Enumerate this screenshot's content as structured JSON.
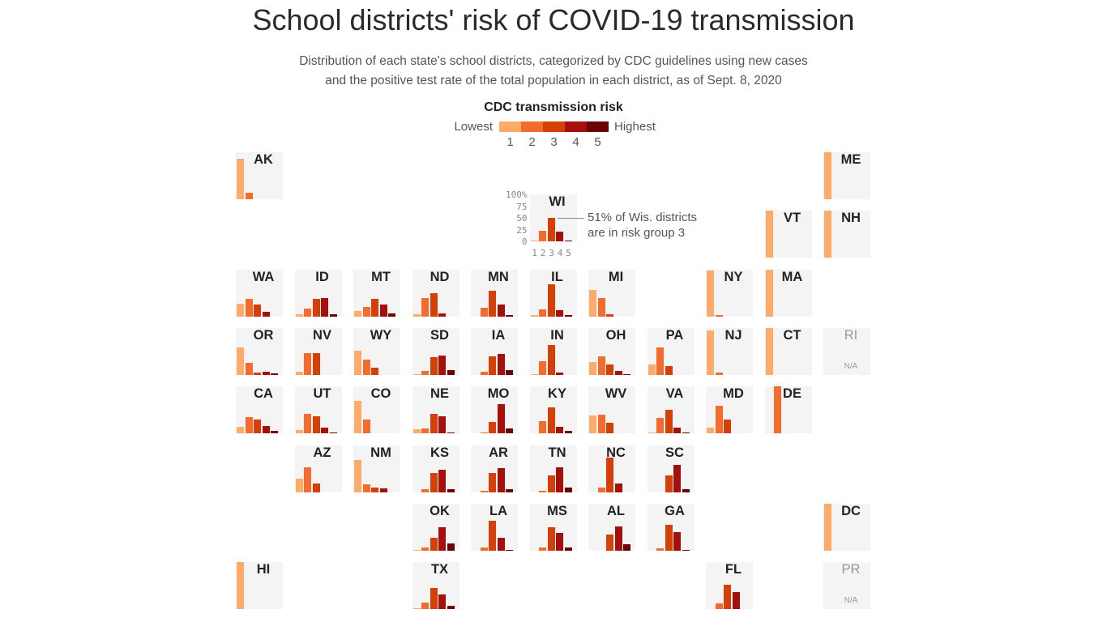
{
  "title": "School districts' risk of COVID-19 transmission",
  "subtitle_line1": "Distribution of each state's school districts, categorized by CDC guidelines using new cases",
  "subtitle_line2": "and the positive test rate of the total population in each district, as of Sept. 8, 2020",
  "legend": {
    "title": "CDC transmission risk",
    "low_label": "Lowest",
    "high_label": "Highest",
    "levels": [
      "1",
      "2",
      "3",
      "4",
      "5"
    ],
    "colors": [
      "#fdaa6a",
      "#f36c2e",
      "#d54008",
      "#a50f0c",
      "#6b0505"
    ]
  },
  "annotation": {
    "line1": "51% of Wis. districts",
    "line2": "are in risk group 3"
  },
  "na_label": "N/A",
  "chart_data": {
    "type": "bar",
    "layout": "tile-grid small multiples",
    "categories": [
      "1",
      "2",
      "3",
      "4",
      "5"
    ],
    "ylim": [
      0,
      100
    ],
    "y_ticks": [
      "100%",
      "75",
      "50",
      "25",
      "0"
    ],
    "unit": "percent of districts",
    "states": [
      {
        "state": "AK",
        "values": [
          86,
          14,
          0,
          0,
          0
        ]
      },
      {
        "state": "ME",
        "values": [
          100,
          0,
          0,
          0,
          0
        ]
      },
      {
        "state": "WI",
        "values": [
          3,
          23,
          51,
          21,
          2
        ]
      },
      {
        "state": "VT",
        "values": [
          100,
          0,
          0,
          0,
          0
        ]
      },
      {
        "state": "NH",
        "values": [
          100,
          0,
          0,
          0,
          0
        ]
      },
      {
        "state": "WA",
        "values": [
          27,
          38,
          26,
          9,
          0
        ]
      },
      {
        "state": "ID",
        "values": [
          4,
          16,
          37,
          39,
          4
        ]
      },
      {
        "state": "MT",
        "values": [
          11,
          20,
          37,
          25,
          7
        ]
      },
      {
        "state": "ND",
        "values": [
          4,
          39,
          50,
          7,
          0
        ]
      },
      {
        "state": "MN",
        "values": [
          0,
          18,
          55,
          25,
          2
        ]
      },
      {
        "state": "IL",
        "values": [
          2,
          14,
          69,
          13,
          2
        ]
      },
      {
        "state": "MI",
        "values": [
          57,
          39,
          4,
          0,
          0
        ]
      },
      {
        "state": "NY",
        "values": [
          98,
          2,
          0,
          0,
          0
        ]
      },
      {
        "state": "MA",
        "values": [
          100,
          0,
          0,
          0,
          0
        ]
      },
      {
        "state": "OR",
        "values": [
          59,
          26,
          5,
          6,
          4
        ]
      },
      {
        "state": "NV",
        "values": [
          6,
          47,
          47,
          0,
          0
        ]
      },
      {
        "state": "WY",
        "values": [
          51,
          33,
          16,
          0,
          0
        ]
      },
      {
        "state": "SD",
        "values": [
          2,
          9,
          37,
          42,
          10
        ]
      },
      {
        "state": "IA",
        "values": [
          0,
          6,
          39,
          44,
          11
        ]
      },
      {
        "state": "IN",
        "values": [
          2,
          30,
          63,
          5,
          0
        ]
      },
      {
        "state": "OH",
        "values": [
          27,
          40,
          22,
          9,
          2
        ]
      },
      {
        "state": "PA",
        "values": [
          23,
          59,
          18,
          0,
          0
        ]
      },
      {
        "state": "NJ",
        "values": [
          95,
          5,
          0,
          0,
          0
        ]
      },
      {
        "state": "CT",
        "values": [
          100,
          0,
          0,
          0,
          0
        ]
      },
      {
        "state": "RI",
        "values": null
      },
      {
        "state": "CA",
        "values": [
          14,
          35,
          30,
          16,
          5
        ]
      },
      {
        "state": "UT",
        "values": [
          7,
          42,
          37,
          12,
          2
        ]
      },
      {
        "state": "CO",
        "values": [
          70,
          30,
          0,
          0,
          0
        ]
      },
      {
        "state": "NE",
        "values": [
          9,
          11,
          41,
          37,
          2
        ]
      },
      {
        "state": "MO",
        "values": [
          0,
          2,
          25,
          62,
          11
        ]
      },
      {
        "state": "KY",
        "values": [
          0,
          26,
          55,
          14,
          5
        ]
      },
      {
        "state": "WV",
        "values": [
          38,
          40,
          22,
          0,
          0
        ]
      },
      {
        "state": "VA",
        "values": [
          2,
          33,
          50,
          13,
          2
        ]
      },
      {
        "state": "MD",
        "values": [
          12,
          59,
          29,
          0,
          0
        ]
      },
      {
        "state": "DE",
        "values": [
          0,
          100,
          0,
          0,
          0
        ]
      },
      {
        "state": "AZ",
        "values": [
          29,
          53,
          18,
          0,
          0
        ]
      },
      {
        "state": "NM",
        "values": [
          68,
          16,
          9,
          7,
          0
        ]
      },
      {
        "state": "KS",
        "values": [
          0,
          6,
          41,
          47,
          6
        ]
      },
      {
        "state": "AR",
        "values": [
          0,
          2,
          41,
          51,
          6
        ]
      },
      {
        "state": "TN",
        "values": [
          0,
          2,
          36,
          53,
          9
        ]
      },
      {
        "state": "NC",
        "values": [
          0,
          9,
          73,
          18,
          0
        ]
      },
      {
        "state": "SC",
        "values": [
          0,
          0,
          36,
          58,
          6
        ]
      },
      {
        "state": "OK",
        "values": [
          2,
          7,
          27,
          49,
          15
        ]
      },
      {
        "state": "LA",
        "values": [
          0,
          7,
          64,
          27,
          2
        ]
      },
      {
        "state": "MS",
        "values": [
          0,
          7,
          49,
          37,
          7
        ]
      },
      {
        "state": "AL",
        "values": [
          0,
          0,
          34,
          52,
          14
        ]
      },
      {
        "state": "GA",
        "values": [
          0,
          5,
          54,
          39,
          2
        ]
      },
      {
        "state": "DC",
        "values": [
          100,
          0,
          0,
          0,
          0
        ]
      },
      {
        "state": "HI",
        "values": [
          100,
          0,
          0,
          0,
          0
        ]
      },
      {
        "state": "TX",
        "values": [
          2,
          14,
          45,
          32,
          7
        ]
      },
      {
        "state": "FL",
        "values": [
          0,
          12,
          52,
          36,
          0
        ]
      },
      {
        "state": "PR",
        "values": null
      }
    ]
  }
}
